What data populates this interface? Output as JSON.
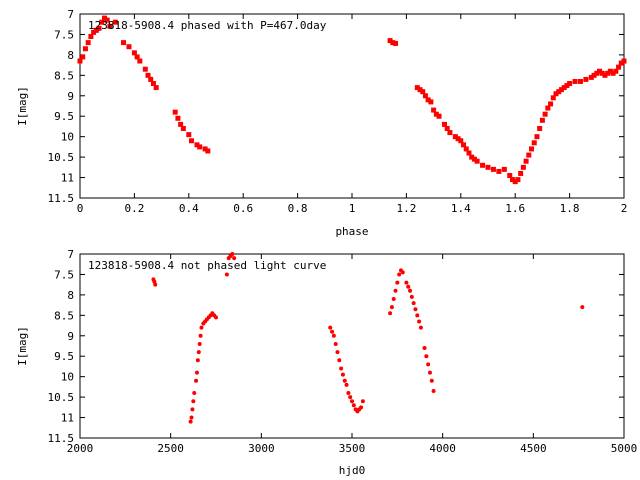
{
  "chart_data": [
    {
      "type": "scatter",
      "title": "123818-5908.4 phased with P=467.0day",
      "xlabel": "phase",
      "ylabel": "I[mag]",
      "xlim": [
        0,
        2
      ],
      "ylim": [
        11.5,
        7
      ],
      "y_inverted": true,
      "xticks": [
        "0",
        "0.2",
        "0.4",
        "0.6",
        "0.8",
        "1",
        "1.2",
        "1.4",
        "1.6",
        "1.8",
        "2"
      ],
      "yticks": [
        "7",
        "7.5",
        "8",
        "8.5",
        "9",
        "9.5",
        "10",
        "10.5",
        "11",
        "11.5"
      ],
      "grid": false,
      "marker_color": "#ff0000",
      "series": [
        {
          "points": [
            [
              0.0,
              8.15
            ],
            [
              0.01,
              8.05
            ],
            [
              0.02,
              7.85
            ],
            [
              0.03,
              7.7
            ],
            [
              0.04,
              7.55
            ],
            [
              0.05,
              7.45
            ],
            [
              0.06,
              7.4
            ],
            [
              0.07,
              7.35
            ],
            [
              0.08,
              7.2
            ],
            [
              0.09,
              7.1
            ],
            [
              0.1,
              7.15
            ],
            [
              0.11,
              7.3
            ],
            [
              0.13,
              7.2
            ],
            [
              0.16,
              7.7
            ],
            [
              0.18,
              7.8
            ],
            [
              0.2,
              7.95
            ],
            [
              0.21,
              8.05
            ],
            [
              0.22,
              8.15
            ],
            [
              0.24,
              8.35
            ],
            [
              0.25,
              8.5
            ],
            [
              0.26,
              8.6
            ],
            [
              0.27,
              8.7
            ],
            [
              0.28,
              8.8
            ],
            [
              0.35,
              9.4
            ],
            [
              0.36,
              9.55
            ],
            [
              0.37,
              9.7
            ],
            [
              0.38,
              9.8
            ],
            [
              0.4,
              9.95
            ],
            [
              0.41,
              10.1
            ],
            [
              0.43,
              10.2
            ],
            [
              0.44,
              10.25
            ],
            [
              0.46,
              10.3
            ],
            [
              0.47,
              10.35
            ],
            [
              1.14,
              7.65
            ],
            [
              1.15,
              7.7
            ],
            [
              1.16,
              7.72
            ],
            [
              1.24,
              8.8
            ],
            [
              1.25,
              8.85
            ],
            [
              1.26,
              8.9
            ],
            [
              1.27,
              9.0
            ],
            [
              1.28,
              9.1
            ],
            [
              1.29,
              9.15
            ],
            [
              1.3,
              9.35
            ],
            [
              1.31,
              9.45
            ],
            [
              1.32,
              9.5
            ],
            [
              1.34,
              9.7
            ],
            [
              1.35,
              9.8
            ],
            [
              1.36,
              9.9
            ],
            [
              1.38,
              10.0
            ],
            [
              1.39,
              10.05
            ],
            [
              1.4,
              10.1
            ],
            [
              1.41,
              10.2
            ],
            [
              1.42,
              10.3
            ],
            [
              1.43,
              10.4
            ],
            [
              1.44,
              10.5
            ],
            [
              1.45,
              10.55
            ],
            [
              1.46,
              10.6
            ],
            [
              1.48,
              10.7
            ],
            [
              1.5,
              10.75
            ],
            [
              1.52,
              10.8
            ],
            [
              1.54,
              10.85
            ],
            [
              1.56,
              10.8
            ],
            [
              1.58,
              10.95
            ],
            [
              1.59,
              11.05
            ],
            [
              1.6,
              11.1
            ],
            [
              1.61,
              11.05
            ],
            [
              1.62,
              10.9
            ],
            [
              1.63,
              10.75
            ],
            [
              1.64,
              10.6
            ],
            [
              1.65,
              10.45
            ],
            [
              1.66,
              10.3
            ],
            [
              1.67,
              10.15
            ],
            [
              1.68,
              10.0
            ],
            [
              1.69,
              9.8
            ],
            [
              1.7,
              9.6
            ],
            [
              1.71,
              9.45
            ],
            [
              1.72,
              9.3
            ],
            [
              1.73,
              9.2
            ],
            [
              1.74,
              9.05
            ],
            [
              1.75,
              8.95
            ],
            [
              1.76,
              8.9
            ],
            [
              1.77,
              8.85
            ],
            [
              1.78,
              8.8
            ],
            [
              1.79,
              8.75
            ],
            [
              1.8,
              8.7
            ],
            [
              1.82,
              8.65
            ],
            [
              1.84,
              8.65
            ],
            [
              1.86,
              8.6
            ],
            [
              1.88,
              8.55
            ],
            [
              1.89,
              8.5
            ],
            [
              1.9,
              8.45
            ],
            [
              1.91,
              8.4
            ],
            [
              1.92,
              8.45
            ],
            [
              1.93,
              8.5
            ],
            [
              1.94,
              8.45
            ],
            [
              1.95,
              8.4
            ],
            [
              1.96,
              8.45
            ],
            [
              1.97,
              8.4
            ],
            [
              1.98,
              8.3
            ],
            [
              1.99,
              8.2
            ],
            [
              2.0,
              8.15
            ]
          ]
        }
      ]
    },
    {
      "type": "scatter",
      "title": "123818-5908.4 not phased light curve",
      "xlabel": "hjd0",
      "ylabel": "I[mag]",
      "xlim": [
        2000,
        5000
      ],
      "ylim": [
        11.5,
        7
      ],
      "y_inverted": true,
      "xticks": [
        "2000",
        "2500",
        "3000",
        "3500",
        "4000",
        "4500",
        "5000"
      ],
      "yticks": [
        "7",
        "7.5",
        "8",
        "8.5",
        "9",
        "9.5",
        "10",
        "10.5",
        "11",
        "11.5"
      ],
      "grid": false,
      "marker_color": "#ff0000",
      "series": [
        {
          "points": [
            [
              2405,
              7.62
            ],
            [
              2410,
              7.68
            ],
            [
              2415,
              7.75
            ],
            [
              2610,
              11.1
            ],
            [
              2615,
              11.0
            ],
            [
              2620,
              10.8
            ],
            [
              2625,
              10.6
            ],
            [
              2630,
              10.4
            ],
            [
              2640,
              10.1
            ],
            [
              2645,
              9.9
            ],
            [
              2650,
              9.6
            ],
            [
              2655,
              9.4
            ],
            [
              2660,
              9.2
            ],
            [
              2665,
              9.0
            ],
            [
              2670,
              8.8
            ],
            [
              2680,
              8.7
            ],
            [
              2690,
              8.65
            ],
            [
              2700,
              8.6
            ],
            [
              2710,
              8.55
            ],
            [
              2720,
              8.5
            ],
            [
              2730,
              8.45
            ],
            [
              2740,
              8.5
            ],
            [
              2750,
              8.55
            ],
            [
              2810,
              7.5
            ],
            [
              2820,
              7.1
            ],
            [
              2830,
              7.05
            ],
            [
              2840,
              7.0
            ],
            [
              2850,
              7.1
            ],
            [
              3380,
              8.8
            ],
            [
              3390,
              8.9
            ],
            [
              3400,
              9.0
            ],
            [
              3410,
              9.2
            ],
            [
              3420,
              9.4
            ],
            [
              3430,
              9.6
            ],
            [
              3440,
              9.8
            ],
            [
              3450,
              9.95
            ],
            [
              3460,
              10.1
            ],
            [
              3470,
              10.2
            ],
            [
              3480,
              10.4
            ],
            [
              3490,
              10.5
            ],
            [
              3500,
              10.6
            ],
            [
              3510,
              10.7
            ],
            [
              3520,
              10.8
            ],
            [
              3530,
              10.85
            ],
            [
              3540,
              10.8
            ],
            [
              3550,
              10.75
            ],
            [
              3560,
              10.6
            ],
            [
              3710,
              8.45
            ],
            [
              3720,
              8.3
            ],
            [
              3730,
              8.1
            ],
            [
              3740,
              7.9
            ],
            [
              3750,
              7.7
            ],
            [
              3760,
              7.5
            ],
            [
              3770,
              7.4
            ],
            [
              3780,
              7.45
            ],
            [
              3800,
              7.7
            ],
            [
              3810,
              7.8
            ],
            [
              3820,
              7.9
            ],
            [
              3830,
              8.05
            ],
            [
              3840,
              8.2
            ],
            [
              3850,
              8.35
            ],
            [
              3860,
              8.5
            ],
            [
              3870,
              8.65
            ],
            [
              3880,
              8.8
            ],
            [
              3900,
              9.3
            ],
            [
              3910,
              9.5
            ],
            [
              3920,
              9.7
            ],
            [
              3930,
              9.9
            ],
            [
              3940,
              10.1
            ],
            [
              3950,
              10.35
            ],
            [
              4770,
              8.3
            ]
          ]
        }
      ]
    }
  ]
}
